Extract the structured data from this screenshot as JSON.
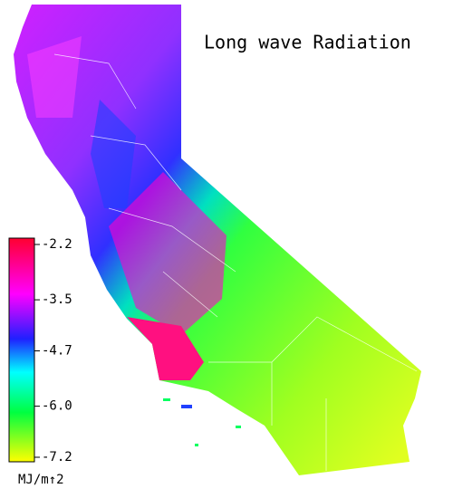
{
  "title": "Long wave Radiation",
  "colorbar": {
    "lim": [
      -2.2,
      -7.2
    ],
    "ticks": [
      -2.2,
      -3.5,
      -4.7,
      {
        "value": -6,
        "label": "-6.0"
      },
      -7.2
    ],
    "unit": "MJ/m↑2"
  }
}
